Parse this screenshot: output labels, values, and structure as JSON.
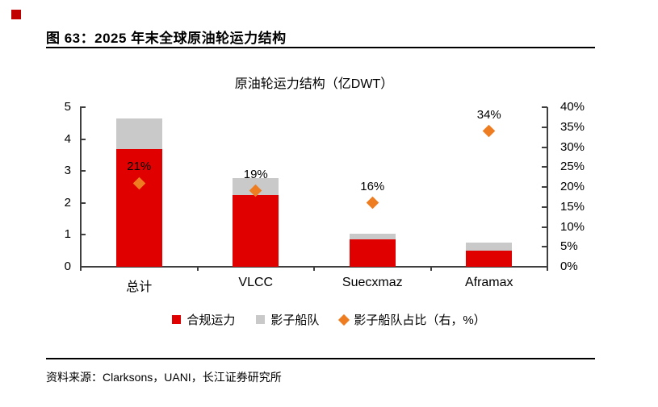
{
  "page": {
    "corner_marker_color": "#c00000",
    "caption": "图 63：2025 年末全球原油轮运力结构",
    "source_prefix": "资料来源：",
    "source_text": "Clarksons，UANI，长江证券研究所"
  },
  "chart_data": {
    "type": "bar",
    "title": "原油轮运力结构（亿DWT）",
    "categories": [
      "总计",
      "VLCC",
      "Suecxmaz",
      "Aframax"
    ],
    "series": [
      {
        "name": "合规运力",
        "type": "bar",
        "stack": "fleet",
        "axis": "left",
        "color": "#e00000",
        "values": [
          3.68,
          2.25,
          0.87,
          0.5
        ]
      },
      {
        "name": "影子船队",
        "type": "bar",
        "stack": "fleet",
        "axis": "left",
        "color": "#c9c9c9",
        "values": [
          0.97,
          0.54,
          0.17,
          0.25
        ]
      },
      {
        "name": "影子船队占比（右，%）",
        "type": "scatter",
        "marker": "diamond",
        "axis": "right",
        "color": "#ee7d22",
        "values": [
          21,
          19,
          16,
          34
        ],
        "point_labels": [
          "21%",
          "19%",
          "16%",
          "34%"
        ]
      }
    ],
    "left_axis": {
      "min": 0,
      "max": 5,
      "ticks": [
        5,
        4,
        3,
        2,
        1,
        0
      ]
    },
    "right_axis": {
      "min": 0,
      "max": 40,
      "ticks": [
        "40%",
        "35%",
        "30%",
        "25%",
        "20%",
        "15%",
        "10%",
        "5%",
        "0%"
      ]
    },
    "legend_position": "bottom",
    "grid": false,
    "axis_color": "#3f3f3f"
  }
}
